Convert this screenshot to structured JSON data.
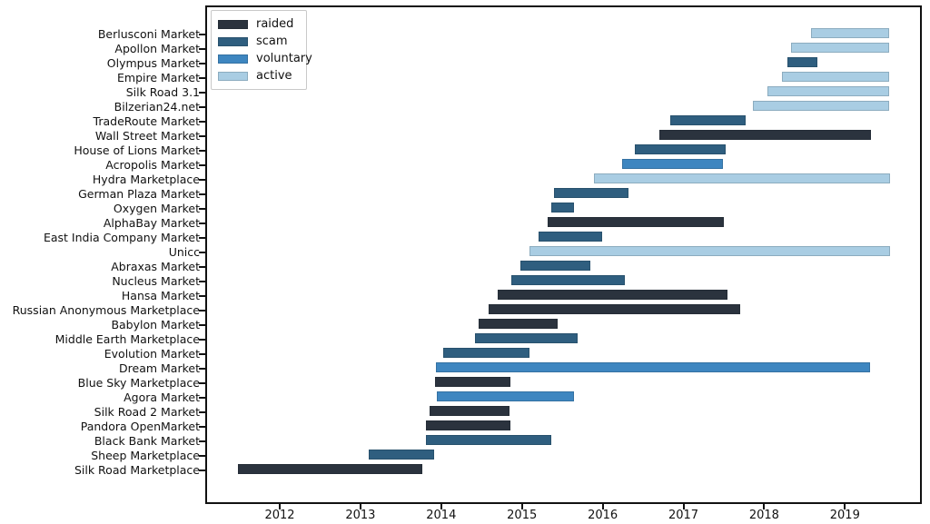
{
  "chart_data": {
    "type": "bar",
    "subtype": "horizontal-gantt-lifespans",
    "title": "",
    "xlabel": "",
    "ylabel": "",
    "grid": false,
    "legend_position": "upper-left",
    "x_range": [
      2011.1,
      2019.93
    ],
    "x_ticks": [
      2012,
      2013,
      2014,
      2015,
      2016,
      2017,
      2018,
      2019
    ],
    "legend": [
      {
        "category": "raided",
        "label": "raided",
        "color": "#2b333e"
      },
      {
        "category": "scam",
        "label": "scam",
        "color": "#2f5e7f"
      },
      {
        "category": "voluntary",
        "label": "voluntary",
        "color": "#3e86c0"
      },
      {
        "category": "active",
        "label": "active",
        "color": "#a9cde3"
      }
    ],
    "markets": [
      {
        "name": "Berlusconi Market",
        "category": "active",
        "start": 2018.58,
        "end": 2019.55
      },
      {
        "name": "Apollon Market",
        "category": "active",
        "start": 2018.33,
        "end": 2019.55
      },
      {
        "name": "Olympus Market",
        "category": "scam",
        "start": 2018.29,
        "end": 2018.66
      },
      {
        "name": "Empire Market",
        "category": "active",
        "start": 2018.22,
        "end": 2019.55
      },
      {
        "name": "Silk Road 3.1",
        "category": "active",
        "start": 2018.04,
        "end": 2019.55
      },
      {
        "name": "Bilzerian24.net",
        "category": "active",
        "start": 2017.86,
        "end": 2019.55
      },
      {
        "name": "TradeRoute Market",
        "category": "scam",
        "start": 2016.84,
        "end": 2017.77
      },
      {
        "name": "Wall Street Market",
        "category": "raided",
        "start": 2016.7,
        "end": 2019.32
      },
      {
        "name": "House of Lions Market",
        "category": "scam",
        "start": 2016.4,
        "end": 2017.52
      },
      {
        "name": "Acropolis Market",
        "category": "voluntary",
        "start": 2016.24,
        "end": 2017.49
      },
      {
        "name": "Hydra Marketplace",
        "category": "active",
        "start": 2015.89,
        "end": 2019.56
      },
      {
        "name": "German Plaza Market",
        "category": "scam",
        "start": 2015.4,
        "end": 2016.32
      },
      {
        "name": "Oxygen Market",
        "category": "scam",
        "start": 2015.36,
        "end": 2015.64
      },
      {
        "name": "AlphaBay Market",
        "category": "raided",
        "start": 2015.32,
        "end": 2017.5
      },
      {
        "name": "East India Company Market",
        "category": "scam",
        "start": 2015.21,
        "end": 2015.99
      },
      {
        "name": "Unicc",
        "category": "active",
        "start": 2015.09,
        "end": 2019.56
      },
      {
        "name": "Abraxas Market",
        "category": "scam",
        "start": 2014.98,
        "end": 2015.85
      },
      {
        "name": "Nucleus Market",
        "category": "scam",
        "start": 2014.87,
        "end": 2016.27
      },
      {
        "name": "Hansa Market",
        "category": "raided",
        "start": 2014.7,
        "end": 2017.55
      },
      {
        "name": "Russian Anonymous Marketplace",
        "category": "raided",
        "start": 2014.59,
        "end": 2017.7
      },
      {
        "name": "Babylon Market",
        "category": "raided",
        "start": 2014.46,
        "end": 2015.44
      },
      {
        "name": "Middle Earth Marketplace",
        "category": "scam",
        "start": 2014.42,
        "end": 2015.69
      },
      {
        "name": "Evolution Market",
        "category": "scam",
        "start": 2014.02,
        "end": 2015.09
      },
      {
        "name": "Dream Market",
        "category": "voluntary",
        "start": 2013.93,
        "end": 2019.31
      },
      {
        "name": "Blue Sky Marketplace",
        "category": "raided",
        "start": 2013.92,
        "end": 2014.86
      },
      {
        "name": "Agora Market",
        "category": "voluntary",
        "start": 2013.95,
        "end": 2015.64
      },
      {
        "name": "Silk Road 2 Market",
        "category": "raided",
        "start": 2013.86,
        "end": 2014.85
      },
      {
        "name": "Pandora OpenMarket",
        "category": "raided",
        "start": 2013.81,
        "end": 2014.86
      },
      {
        "name": "Black Bank Market",
        "category": "scam",
        "start": 2013.81,
        "end": 2015.36
      },
      {
        "name": "Sheep Marketplace",
        "category": "scam",
        "start": 2013.1,
        "end": 2013.91
      },
      {
        "name": "Silk Road Marketplace",
        "category": "raided",
        "start": 2011.48,
        "end": 2013.77
      }
    ]
  }
}
